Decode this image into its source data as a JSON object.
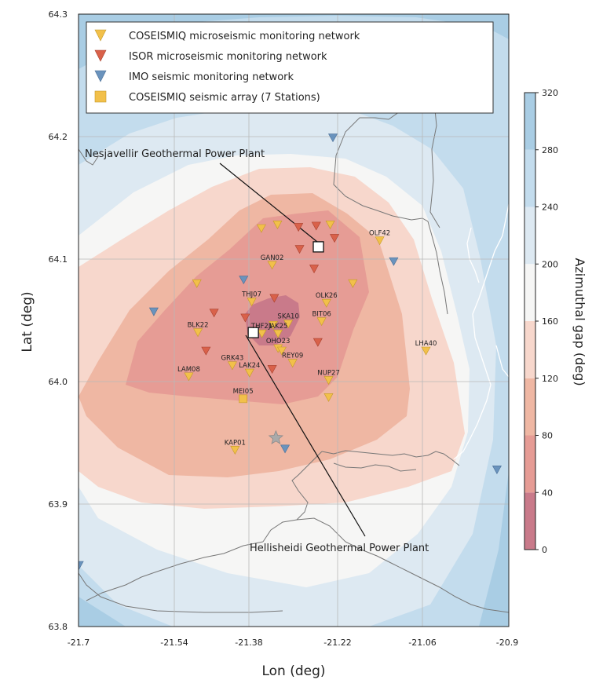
{
  "chart_data": {
    "type": "contour-map",
    "xlabel": "Lon (deg)",
    "ylabel": "Lat (deg)",
    "xlim": [
      -21.7,
      -20.9
    ],
    "ylim": [
      63.8,
      64.3
    ],
    "x_ticks": [
      "-21.7",
      "-21.54",
      "-21.38",
      "-21.22",
      "-21.06",
      "-20.9"
    ],
    "y_ticks": [
      "63.8",
      "63.9",
      "64.0",
      "64.1",
      "64.2",
      "64.3"
    ],
    "grid": true,
    "colorbar": {
      "title": "Azimuthal gap (deg)",
      "ticks": [
        "0",
        "40",
        "80",
        "120",
        "160",
        "200",
        "240",
        "280",
        "320"
      ],
      "levels": [
        0,
        40,
        80,
        120,
        160,
        200,
        240,
        280,
        320
      ],
      "colors": [
        "#c97a8a",
        "#e69c95",
        "#efb7a3",
        "#f7d7cc",
        "#f6f6f5",
        "#dde9f2",
        "#c3dced",
        "#a9cde4"
      ]
    },
    "legend": {
      "placement": "top-left",
      "entries": [
        {
          "label": "COSEISMIQ microseismic monitoring network",
          "marker": "triangle-down",
          "color": "#f2c04a"
        },
        {
          "label": "ISOR microseismic monitoring network",
          "marker": "triangle-down",
          "color": "#d9614a"
        },
        {
          "label": "IMO seismic monitoring network",
          "marker": "triangle-down",
          "color": "#6a93bd"
        },
        {
          "label": "COSEISMIQ seismic array (7 Stations)",
          "marker": "square",
          "color": "#f2c04a"
        }
      ]
    },
    "annotations": [
      {
        "text": "Nesjavellir Geothermal Power Plant",
        "lon": -21.255,
        "lat": 64.11
      },
      {
        "text": "Hellisheidi Geothermal Power Plant",
        "lon": -21.375,
        "lat": 64.04
      }
    ],
    "epicenter_marker": {
      "lon": -21.333,
      "lat": 63.954
    },
    "stations": [
      {
        "name": "GAN02",
        "lon": -21.34,
        "lat": 64.095,
        "network": "coseismiq"
      },
      {
        "name": "THJ07",
        "lon": -21.378,
        "lat": 64.065,
        "network": "coseismiq"
      },
      {
        "name": "OLK26",
        "lon": -21.239,
        "lat": 64.064,
        "network": "coseismiq"
      },
      {
        "name": "SKA10",
        "lon": -21.31,
        "lat": 64.047,
        "network": "coseismiq"
      },
      {
        "name": "BIT06",
        "lon": -21.248,
        "lat": 64.049,
        "network": "coseismiq"
      },
      {
        "name": "BLK22",
        "lon": -21.478,
        "lat": 64.04,
        "network": "coseismiq"
      },
      {
        "name": "THF21",
        "lon": -21.359,
        "lat": 64.039,
        "network": "coseismiq"
      },
      {
        "name": "JAK25",
        "lon": -21.329,
        "lat": 64.039,
        "network": "coseismiq"
      },
      {
        "name": "OHO23",
        "lon": -21.329,
        "lat": 64.027,
        "network": "coseismiq"
      },
      {
        "name": "GRK43",
        "lon": -21.414,
        "lat": 64.013,
        "network": "coseismiq"
      },
      {
        "name": "REY09",
        "lon": -21.302,
        "lat": 64.015,
        "network": "coseismiq"
      },
      {
        "name": "LAK24",
        "lon": -21.382,
        "lat": 64.007,
        "network": "coseismiq"
      },
      {
        "name": "NUP27",
        "lon": -21.235,
        "lat": 64.001,
        "network": "coseismiq"
      },
      {
        "name": "LAM08",
        "lon": -21.495,
        "lat": 64.004,
        "network": "coseismiq"
      },
      {
        "name": "MEI05",
        "lon": -21.394,
        "lat": 63.986,
        "network": "array"
      },
      {
        "name": "KAP01",
        "lon": -21.409,
        "lat": 63.944,
        "network": "coseismiq"
      },
      {
        "name": "OLF42",
        "lon": -21.14,
        "lat": 64.115,
        "network": "coseismiq"
      },
      {
        "name": "LHA40",
        "lon": -21.054,
        "lat": 64.025,
        "network": "coseismiq"
      },
      {
        "name": "",
        "lon": -21.36,
        "lat": 64.125,
        "network": "coseismiq"
      },
      {
        "name": "",
        "lon": -21.33,
        "lat": 64.128,
        "network": "coseismiq"
      },
      {
        "name": "",
        "lon": -21.232,
        "lat": 64.128,
        "network": "coseismiq"
      },
      {
        "name": "",
        "lon": -21.48,
        "lat": 64.08,
        "network": "coseismiq"
      },
      {
        "name": "",
        "lon": -21.338,
        "lat": 64.046,
        "network": "coseismiq"
      },
      {
        "name": "",
        "lon": -21.322,
        "lat": 64.025,
        "network": "coseismiq"
      },
      {
        "name": "",
        "lon": -21.19,
        "lat": 64.08,
        "network": "coseismiq"
      },
      {
        "name": "",
        "lon": -21.235,
        "lat": 63.987,
        "network": "coseismiq"
      },
      {
        "name": "",
        "lon": -21.291,
        "lat": 64.126,
        "network": "isor"
      },
      {
        "name": "",
        "lon": -21.258,
        "lat": 64.127,
        "network": "isor"
      },
      {
        "name": "",
        "lon": -21.289,
        "lat": 64.108,
        "network": "isor"
      },
      {
        "name": "",
        "lon": -21.224,
        "lat": 64.117,
        "network": "isor"
      },
      {
        "name": "",
        "lon": -21.262,
        "lat": 64.092,
        "network": "isor"
      },
      {
        "name": "",
        "lon": -21.448,
        "lat": 64.056,
        "network": "isor"
      },
      {
        "name": "",
        "lon": -21.39,
        "lat": 64.052,
        "network": "isor"
      },
      {
        "name": "",
        "lon": -21.336,
        "lat": 64.068,
        "network": "isor"
      },
      {
        "name": "",
        "lon": -21.255,
        "lat": 64.032,
        "network": "isor"
      },
      {
        "name": "",
        "lon": -21.463,
        "lat": 64.025,
        "network": "isor"
      },
      {
        "name": "",
        "lon": -21.34,
        "lat": 64.01,
        "network": "isor"
      },
      {
        "name": "",
        "lon": -21.227,
        "lat": 64.199,
        "network": "imo"
      },
      {
        "name": "",
        "lon": -21.393,
        "lat": 64.083,
        "network": "imo"
      },
      {
        "name": "",
        "lon": -21.114,
        "lat": 64.098,
        "network": "imo"
      },
      {
        "name": "",
        "lon": -21.56,
        "lat": 64.057,
        "network": "imo"
      },
      {
        "name": "",
        "lon": -21.316,
        "lat": 63.945,
        "network": "imo"
      },
      {
        "name": "",
        "lon": -20.922,
        "lat": 63.928,
        "network": "imo"
      },
      {
        "name": "",
        "lon": -21.699,
        "lat": 63.85,
        "network": "imo"
      },
      {
        "name": "",
        "lon": -21.254,
        "lat": 64.11,
        "network": "plant"
      },
      {
        "name": "",
        "lon": -21.375,
        "lat": 64.04,
        "network": "plant"
      }
    ]
  }
}
